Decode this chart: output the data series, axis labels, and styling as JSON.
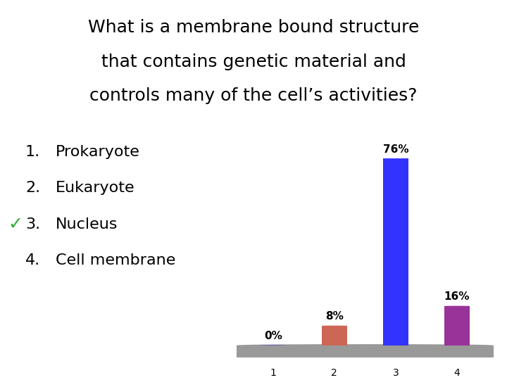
{
  "title_line1": "What is a membrane bound structure",
  "title_line2": "that contains genetic material and",
  "title_line3": "controls many of the cell’s activities?",
  "options": [
    "Prokaryote",
    "Eukaryote",
    "Nucleus",
    "Cell membrane"
  ],
  "option_nums": [
    "1.",
    "2.",
    "3.",
    "4."
  ],
  "checkmark_option": 2,
  "categories": [
    1,
    2,
    3,
    4
  ],
  "values": [
    0,
    8,
    76,
    16
  ],
  "bar_colors": [
    "#3333cc",
    "#cc6655",
    "#3333ff",
    "#993399"
  ],
  "bar_top_colors": [
    "#5555ee",
    "#dd8877",
    "#5555ff",
    "#bb55bb"
  ],
  "bar_labels": [
    "0%",
    "8%",
    "76%",
    "16%"
  ],
  "background_color": "#ffffff",
  "floor_color": "#999999",
  "text_color": "#000000",
  "title_fontsize": 18,
  "options_fontsize": 16,
  "checkmark_color": "#33aa33",
  "bar_label_fontsize": 11
}
